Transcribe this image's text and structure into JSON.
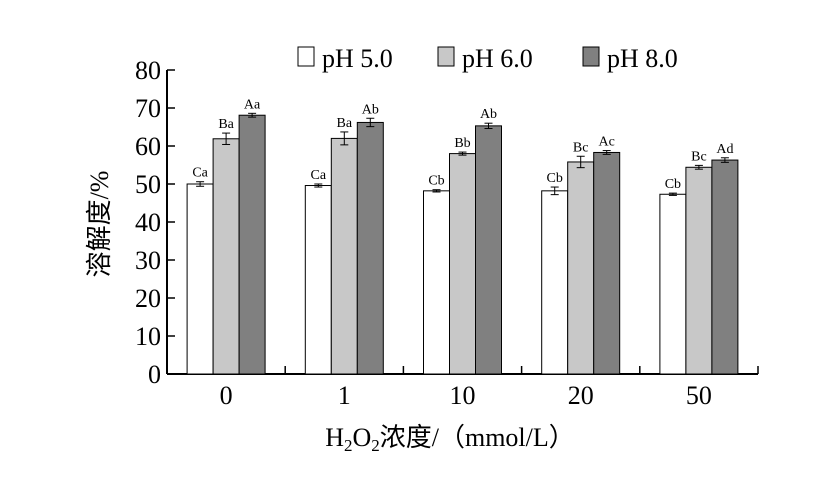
{
  "chart_data": {
    "type": "bar",
    "categories": [
      "0",
      "1",
      "10",
      "20",
      "50"
    ],
    "series": [
      {
        "name": "pH 5.0",
        "color": "#ffffff",
        "values": [
          50.0,
          49.6,
          48.2,
          48.2,
          47.3
        ],
        "errors": [
          0.6,
          0.4,
          0.3,
          1.0,
          0.3
        ],
        "labels": [
          "Ca",
          "Ca",
          "Cb",
          "Cb",
          "Cb"
        ]
      },
      {
        "name": "pH 6.0",
        "color": "#c8c8c8",
        "values": [
          61.9,
          62.0,
          58.0,
          55.8,
          54.4
        ],
        "errors": [
          1.5,
          1.7,
          0.4,
          1.5,
          0.5
        ],
        "labels": [
          "Ba",
          "Ba",
          "Bb",
          "Bc",
          "Bc"
        ]
      },
      {
        "name": "pH 8.0",
        "color": "#808080",
        "values": [
          68.1,
          66.2,
          65.3,
          58.3,
          56.3
        ],
        "errors": [
          0.5,
          1.1,
          0.7,
          0.5,
          0.6
        ],
        "labels": [
          "Aa",
          "Ab",
          "Ab",
          "Ac",
          "Ad"
        ]
      }
    ],
    "ylabel": "溶解度/%",
    "xlabel_parts": [
      "H",
      "2",
      "O",
      "2",
      "浓度/（mmol/L）"
    ],
    "ylim": [
      0,
      80
    ],
    "yticks": [
      "0",
      "10",
      "20",
      "30",
      "40",
      "50",
      "60",
      "70",
      "80"
    ],
    "grid": false,
    "legend_position": "top"
  }
}
